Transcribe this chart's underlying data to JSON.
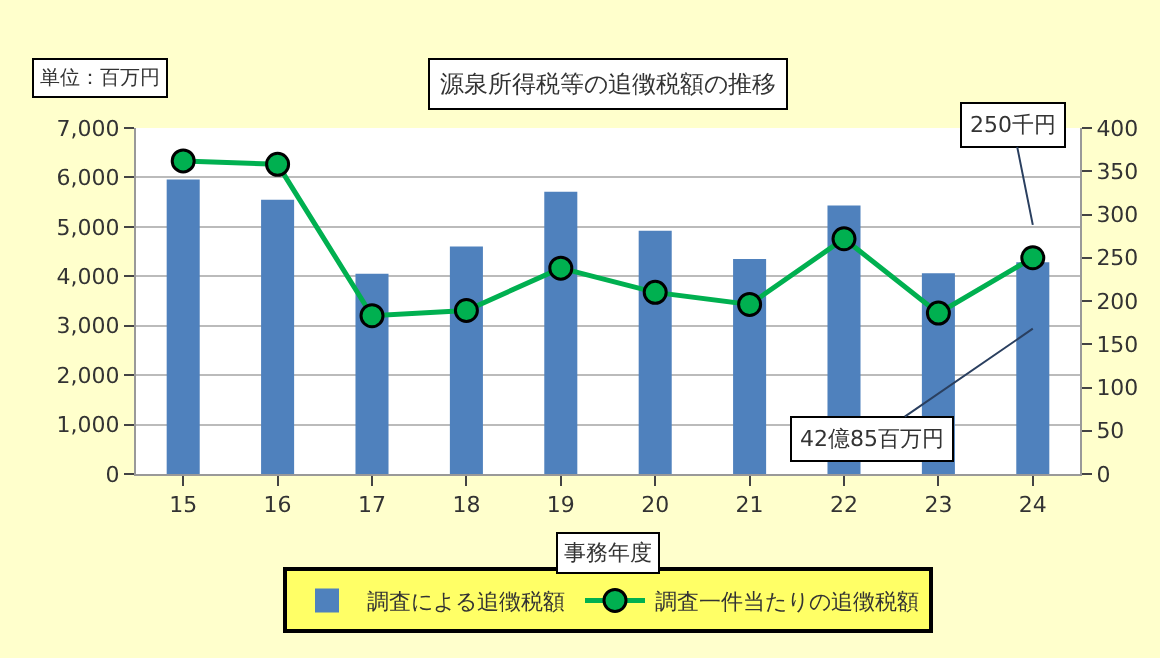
{
  "chart_data": {
    "type": "bar",
    "title": "源泉所得税等の追徴税額の推移",
    "xlabel": "事務年度",
    "categories": [
      "15",
      "16",
      "17",
      "18",
      "19",
      "20",
      "21",
      "22",
      "23",
      "24"
    ],
    "series": [
      {
        "name": "調査による追徴税額",
        "color": "#4f81bd",
        "values": [
          5960,
          5550,
          4050,
          4600,
          5710,
          4920,
          4350,
          5430,
          4060,
          4285
        ]
      },
      {
        "name": "調査一件当たりの追徴税額",
        "type": "line",
        "axis": "y2",
        "color": "#00b050",
        "marker": "circle",
        "values": [
          362,
          358,
          183,
          189,
          238,
          210,
          196,
          272,
          186,
          250
        ]
      }
    ],
    "ylim": [
      0,
      7000
    ],
    "yticks": [
      {
        "value": 0,
        "label": "0"
      },
      {
        "value": 1000,
        "label": "1,000"
      },
      {
        "value": 2000,
        "label": "2,000"
      },
      {
        "value": 3000,
        "label": "3,000"
      },
      {
        "value": 4000,
        "label": "4,000"
      },
      {
        "value": 5000,
        "label": "5,000"
      },
      {
        "value": 6000,
        "label": "6,000"
      },
      {
        "value": 7000,
        "label": "7,000"
      }
    ],
    "y2lim": [
      0,
      400
    ],
    "y2ticks": [
      0,
      50,
      100,
      150,
      200,
      250,
      300,
      350,
      400
    ],
    "grid": "y",
    "legend": "bottom",
    "annotations": [
      "単位：百万円",
      "250千円",
      "42億85百万円"
    ]
  }
}
